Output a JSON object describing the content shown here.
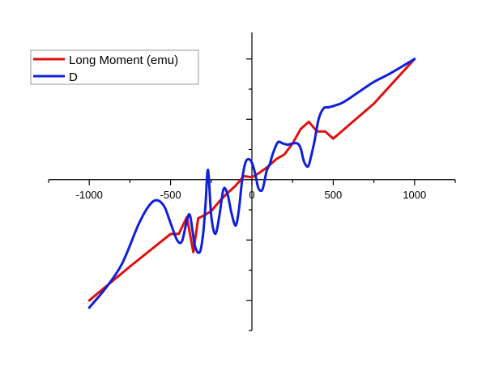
{
  "chart_data": {
    "type": "line",
    "title": "",
    "xlabel": "",
    "ylabel": "",
    "xlim": [
      -1250,
      1250
    ],
    "ylim": [
      -1.25,
      1.22
    ],
    "x_ticks": [
      -1000,
      -500,
      0,
      500,
      1000
    ],
    "x_tick_labels": [
      "-1000",
      "-500",
      "0",
      "500",
      "1000"
    ],
    "y_ticks": [
      -1.0,
      -0.5,
      0.5,
      1.0
    ],
    "y_tick_labels_shown": false,
    "grid": false,
    "legend_position": "top-left",
    "series": [
      {
        "name": "Long Moment (emu)",
        "color": "#e01010",
        "smooth": false,
        "x": [
          -1000,
          -750,
          -500,
          -450,
          -400,
          -360,
          -330,
          -300,
          -250,
          -200,
          -150,
          -100,
          -50,
          0,
          50,
          100,
          150,
          200,
          250,
          300,
          350,
          400,
          450,
          500,
          750,
          1000
        ],
        "y": [
          -1.0,
          -0.72,
          -0.45,
          -0.45,
          -0.31,
          -0.6,
          -0.32,
          -0.3,
          -0.26,
          -0.18,
          -0.11,
          -0.05,
          0.03,
          0.02,
          0.06,
          0.11,
          0.17,
          0.21,
          0.3,
          0.42,
          0.48,
          0.4,
          0.4,
          0.34,
          0.63,
          1.0
        ]
      },
      {
        "name": "D",
        "color": "#1020d8",
        "smooth": true,
        "x": [
          -1000,
          -900,
          -800,
          -700,
          -640,
          -590,
          -540,
          -500,
          -460,
          -430,
          -400,
          -380,
          -350,
          -320,
          -300,
          -285,
          -270,
          -250,
          -225,
          -200,
          -175,
          -150,
          -125,
          -100,
          -80,
          -60,
          -40,
          -20,
          0,
          20,
          40,
          65,
          90,
          110,
          130,
          160,
          190,
          220,
          250,
          280,
          300,
          320,
          345,
          365,
          385,
          410,
          440,
          470,
          500,
          560,
          650,
          750,
          850,
          1000
        ],
        "y": [
          -1.06,
          -0.9,
          -0.7,
          -0.38,
          -0.23,
          -0.17,
          -0.22,
          -0.36,
          -0.5,
          -0.51,
          -0.34,
          -0.3,
          -0.55,
          -0.6,
          -0.45,
          -0.2,
          0.08,
          -0.3,
          -0.45,
          -0.3,
          -0.08,
          -0.12,
          -0.28,
          -0.38,
          -0.25,
          0.0,
          0.14,
          0.17,
          0.14,
          0.05,
          -0.07,
          -0.08,
          0.07,
          0.13,
          0.22,
          0.31,
          0.3,
          0.29,
          0.3,
          0.3,
          0.26,
          0.15,
          0.11,
          0.2,
          0.32,
          0.5,
          0.59,
          0.6,
          0.61,
          0.64,
          0.72,
          0.81,
          0.88,
          1.0
        ]
      }
    ]
  }
}
